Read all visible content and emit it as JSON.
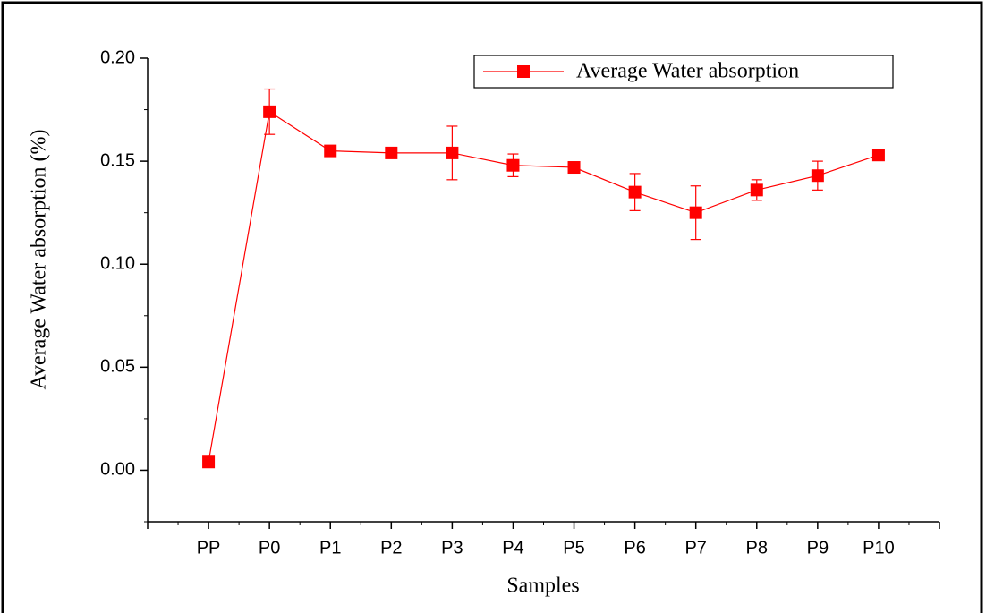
{
  "chart_data": {
    "type": "line",
    "x_label": "Samples",
    "y_label": "Average Water absorption (%)",
    "categories": [
      "PP",
      "P0",
      "P1",
      "P2",
      "P3",
      "P4",
      "P5",
      "P6",
      "P7",
      "P8",
      "P9",
      "P10"
    ],
    "series": [
      {
        "name": "Average Water absorption",
        "color": "#ff0000",
        "values": [
          0.004,
          0.174,
          0.155,
          0.154,
          0.154,
          0.148,
          0.147,
          0.135,
          0.125,
          0.136,
          0.143,
          0.153
        ],
        "errors": [
          0,
          0.011,
          0.001,
          0.001,
          0.013,
          0.0055,
          0.001,
          0.009,
          0.013,
          0.005,
          0.007,
          0.001
        ]
      }
    ],
    "ylim": [
      -0.025,
      0.2
    ],
    "yticks": [
      {
        "value": 0,
        "label": "0.00"
      },
      0.05,
      {
        "value": 0.1,
        "label": "0.10"
      },
      0.15,
      {
        "value": 0.2,
        "label": "0.20"
      }
    ],
    "legend": "top-right"
  }
}
